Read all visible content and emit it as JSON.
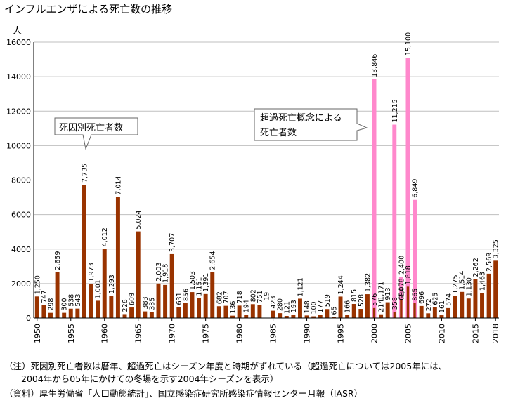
{
  "title": "インフルエンザによる死亡数の推移",
  "notes": {
    "line1": "（注）死因別死亡者数は暦年、超過死亡はシーズン年度と時期がずれている（超過死亡については2005年には、",
    "line2": "2004年から05年にかけての冬場を示す2004年シーズンを表示）",
    "line3": "（資料）厚生労働省「人口動態統計」、国立感染症研究所感染症情報センター月報（IASR）"
  },
  "callouts": {
    "cause": "死因別死亡者数",
    "excess_line1": "超過死亡概念による",
    "excess_line2": "死亡者数"
  },
  "colors": {
    "cause": "#993300",
    "excess": "#ff88cc"
  },
  "chart_data": {
    "type": "bar",
    "ylabel": "人",
    "ylim": [
      0,
      16000
    ],
    "yticks": [
      0,
      2000,
      4000,
      6000,
      8000,
      10000,
      12000,
      14000,
      16000
    ],
    "xticks": [
      1950,
      1955,
      1960,
      1965,
      1970,
      1975,
      1980,
      1985,
      1990,
      1995,
      2000,
      2005,
      2010,
      2015,
      2018
    ],
    "x": [
      1950,
      1951,
      1952,
      1953,
      1954,
      1955,
      1956,
      1957,
      1958,
      1959,
      1960,
      1961,
      1962,
      1963,
      1964,
      1965,
      1966,
      1967,
      1968,
      1969,
      1970,
      1971,
      1972,
      1973,
      1974,
      1975,
      1976,
      1977,
      1978,
      1979,
      1980,
      1981,
      1982,
      1983,
      1984,
      1985,
      1986,
      1987,
      1988,
      1989,
      1990,
      1991,
      1992,
      1993,
      1994,
      1995,
      1996,
      1997,
      1998,
      1999,
      2000,
      2001,
      2002,
      2003,
      2004,
      2005,
      2006,
      2007,
      2008,
      2009,
      2010,
      2011,
      2012,
      2013,
      2014,
      2015,
      2016,
      2017,
      2018
    ],
    "series": [
      {
        "name": "死因別死亡者数",
        "values": [
          1250,
          747,
          298,
          2659,
          300,
          538,
          543,
          7735,
          1973,
          1001,
          4012,
          1293,
          7014,
          226,
          609,
          5024,
          383,
          335,
          2003,
          1918,
          3707,
          631,
          856,
          1503,
          1151,
          1391,
          2654,
          682,
          707,
          136,
          718,
          194,
          802,
          751,
          null,
          423,
          280,
          121,
          193,
          1121,
          148,
          100,
          177,
          519,
          65,
          1244,
          166,
          815,
          528,
          1382,
          576,
          214,
          913,
          358,
          1078,
          1818,
          865,
          696,
          272,
          625,
          161,
          574,
          1275,
          1514,
          1130,
          2262,
          1463,
          2569,
          3325
        ],
        "labels": [
          "1,250",
          "747",
          "298",
          "2,659",
          "300",
          "538",
          "543",
          "7,735",
          "1,973",
          "1,001",
          "4,012",
          "1,293",
          "7,014",
          "226",
          "609",
          "5,024",
          "383",
          "335",
          "2,003",
          "1,918",
          "3,707",
          "631",
          "856",
          "1,503",
          "1,151",
          "1,391",
          "2,654",
          "682",
          "707",
          "136",
          "718",
          "194",
          "802",
          "751",
          "",
          "423",
          "280",
          "121",
          "193",
          "1,121",
          "148",
          "100",
          "177",
          "519",
          "65",
          "1,244",
          "166",
          "815",
          "528",
          "1,382",
          "576",
          "214",
          "913",
          "358",
          "1,078",
          "1,818",
          "865",
          "696",
          "272",
          "625",
          "161",
          "574",
          "1,275",
          "1,514",
          "1,130",
          "2,262",
          "1,463",
          "2,569",
          "3,325"
        ]
      },
      {
        "name": "超過死亡概念による死亡者数",
        "values": [
          null,
          null,
          null,
          null,
          null,
          null,
          null,
          null,
          null,
          null,
          null,
          null,
          null,
          null,
          null,
          null,
          null,
          null,
          null,
          null,
          null,
          null,
          null,
          null,
          null,
          null,
          null,
          null,
          null,
          null,
          null,
          null,
          null,
          null,
          null,
          null,
          null,
          null,
          null,
          null,
          null,
          null,
          null,
          null,
          null,
          null,
          null,
          null,
          null,
          null,
          13846,
          null,
          null,
          11215,
          2400,
          15100,
          6849,
          null,
          null,
          null,
          null,
          null,
          null,
          null,
          null,
          null,
          null,
          null,
          null
        ],
        "labels": [
          "",
          "",
          "",
          "",
          "",
          "",
          "",
          "",
          "",
          "",
          "",
          "",
          "",
          "",
          "",
          "",
          "",
          "",
          "",
          "",
          "",
          "",
          "",
          "",
          "",
          "",
          "",
          "",
          "",
          "",
          "",
          "",
          "",
          "",
          "",
          "",
          "",
          "",
          "",
          "",
          "",
          "",
          "",
          "",
          "",
          "",
          "",
          "",
          "",
          "",
          "13,846",
          "",
          "",
          "11,215",
          "2,400",
          "15,100",
          "6,849",
          "",
          "",
          "",
          "",
          "",
          "",
          "",
          "",
          "",
          "",
          "",
          ""
        ]
      }
    ],
    "extra_labels": [
      {
        "x": 1984,
        "text": "19"
      },
      {
        "x": 2001,
        "text": "1,171"
      },
      {
        "x": 2004,
        "text": "694"
      }
    ]
  }
}
